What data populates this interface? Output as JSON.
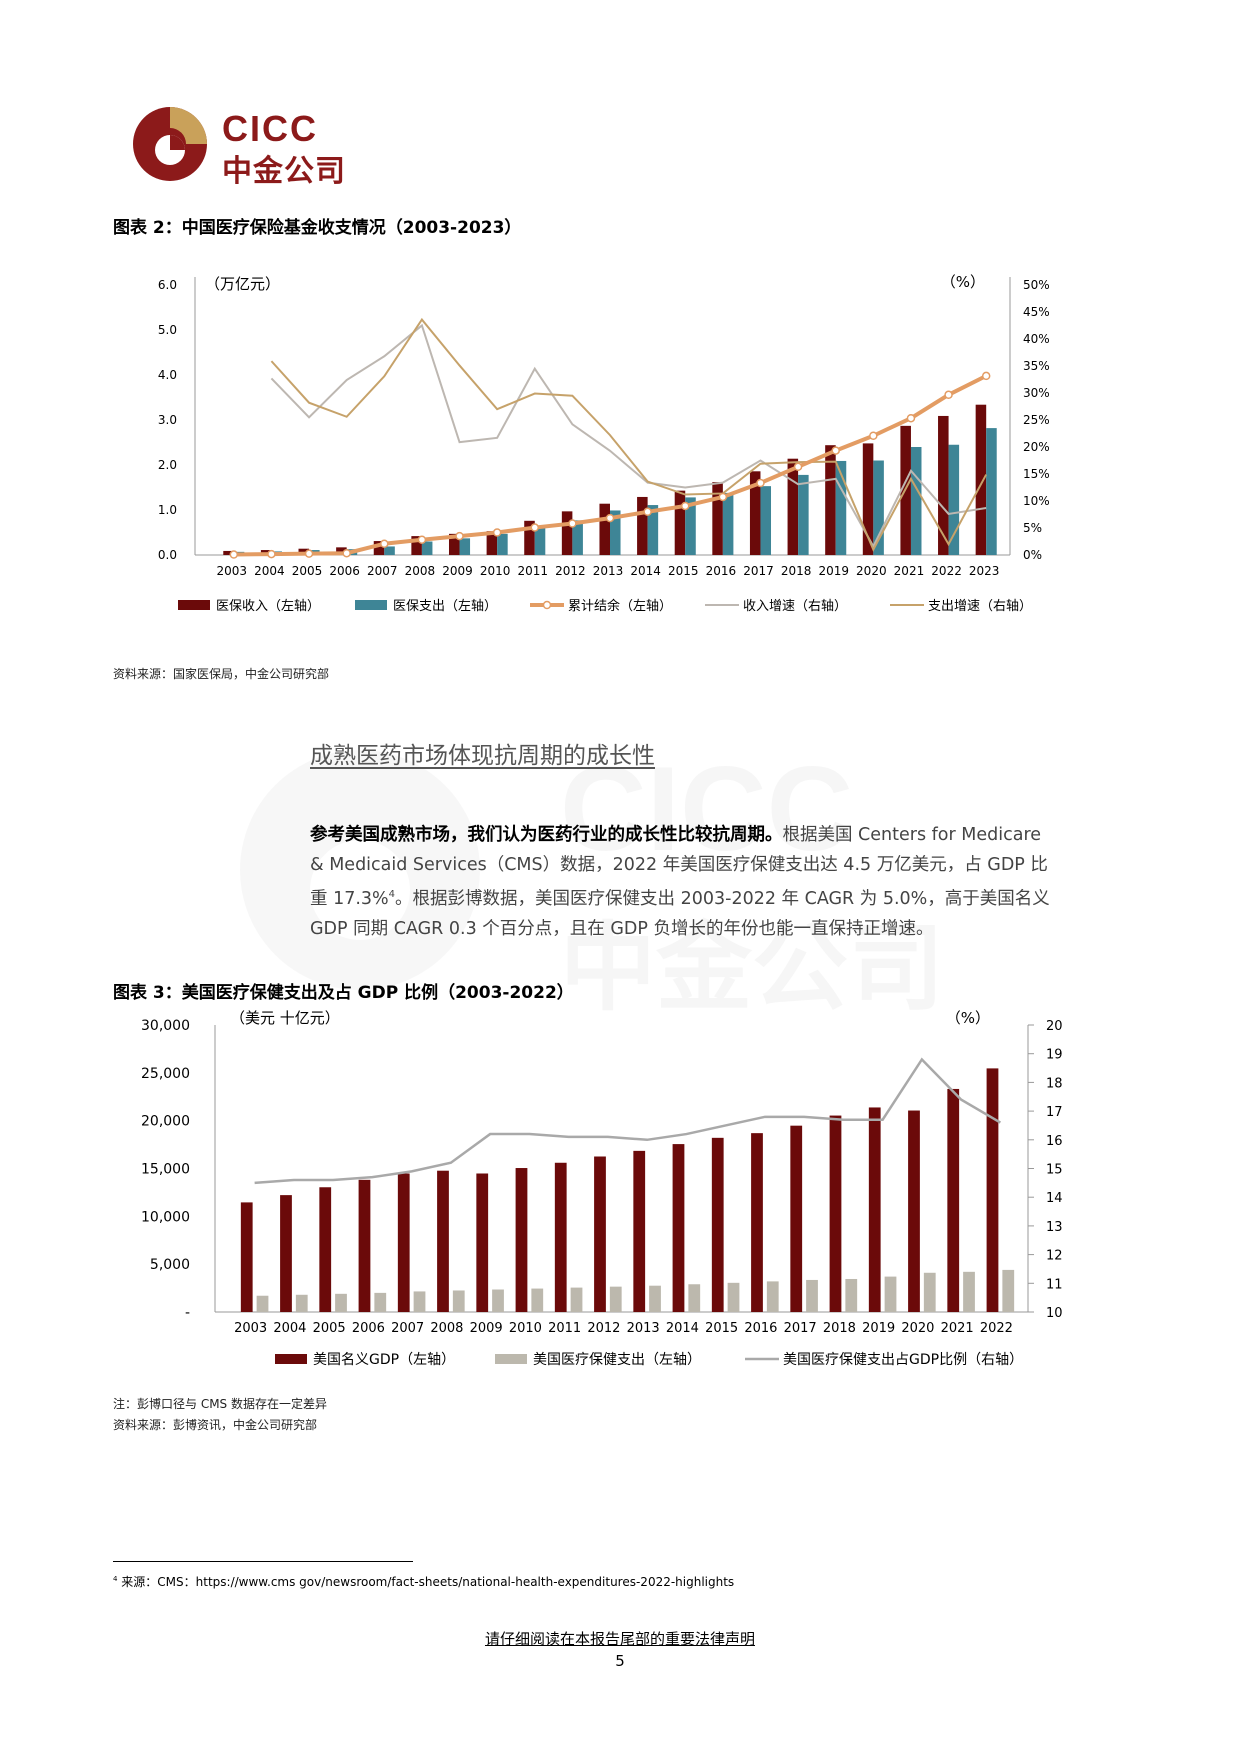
{
  "header": {
    "logo_en": "CICC",
    "logo_cn": "中金公司"
  },
  "watermark": {
    "en": "CICC",
    "cn": "中金公司"
  },
  "figure2": {
    "title": "图表 2：中国医疗保险基金收支情况（2003-2023）",
    "left_unit": "（万亿元）",
    "right_unit": "（%）",
    "source": "资料来源：国家医保局，中金公司研究部",
    "legend": [
      "医保收入（左轴）",
      "医保支出（左轴）",
      "累计结余（左轴）",
      "收入增速（右轴）",
      "支出增速（右轴）"
    ],
    "left_ticks": [
      "0.0",
      "1.0",
      "2.0",
      "3.0",
      "4.0",
      "5.0",
      "6.0"
    ],
    "right_ticks": [
      "0%",
      "5%",
      "10%",
      "15%",
      "20%",
      "25%",
      "30%",
      "35%",
      "40%",
      "45%",
      "50%"
    ],
    "colors": {
      "income": "#6b0a0a",
      "expense": "#3e8596",
      "balance": "#e39c63",
      "income_growth": "#bdb7b1",
      "expense_growth": "#c6a26a"
    }
  },
  "section": {
    "heading": "成熟医药市场体现抗周期的成长性",
    "para_bold": "参考美国成熟市场，我们认为医药行业的成长性比较抗周期。",
    "para_line1_rest": "根据美国 Centers for Medicare",
    "para_line2": "& Medicaid Services（CMS）数据，2022 年美国医疗保健支出达 4.5 万亿美元，占 GDP 比",
    "para_line3_a": "重 17.3%",
    "para_sup": "4",
    "para_line3_b": "。根据彭博数据，美国医疗保健支出 2003-2022 年 CAGR 为 5.0%，高于美国名义",
    "para_line4": "GDP 同期 CAGR 0.3 个百分点，且在 GDP 负增长的年份也能一直保持正增速。"
  },
  "figure3": {
    "title": "图表 3：美国医疗保健支出及占 GDP 比例（2003-2022）",
    "left_unit": "（美元 十亿元）",
    "right_unit": "（%）",
    "left_ticks": [
      "-",
      "5,000",
      "10,000",
      "15,000",
      "20,000",
      "25,000",
      "30,000"
    ],
    "right_ticks": [
      "10",
      "11",
      "12",
      "13",
      "14",
      "15",
      "16",
      "17",
      "18",
      "19",
      "20"
    ],
    "legend": [
      "美国名义GDP（左轴）",
      "美国医疗保健支出（左轴）",
      "美国医疗保健支出占GDP比例（右轴）"
    ],
    "note": "注：彭博口径与 CMS 数据存在一定差异",
    "source": "资料来源：彭博资讯，中金公司研究部",
    "colors": {
      "gdp": "#6b0a0a",
      "health": "#bcb8ad",
      "ratio": "#a9a9a9"
    }
  },
  "footnote": {
    "marker": "4",
    "text": "来源：CMS：https://www.cms gov/newsroom/fact-sheets/national-health-expenditures-2022-highlights"
  },
  "footer": {
    "disclaimer": "请仔细阅读在本报告尾部的重要法律声明",
    "page_number": "5"
  },
  "chart_data": [
    {
      "type": "bar",
      "title": "中国医疗保险基金收支情况（2003-2023）",
      "categories": [
        "2003",
        "2004",
        "2005",
        "2006",
        "2007",
        "2008",
        "2009",
        "2010",
        "2011",
        "2012",
        "2013",
        "2014",
        "2015",
        "2016",
        "2017",
        "2018",
        "2019",
        "2020",
        "2021",
        "2022",
        "2023"
      ],
      "ylabel": "（万亿元）",
      "y2label": "（%）",
      "ylim": [
        0,
        6
      ],
      "y2lim": [
        0,
        50
      ],
      "series": [
        {
          "name": "医保收入（左轴）",
          "axis": "left",
          "type": "bar",
          "values": [
            0.09,
            0.11,
            0.14,
            0.17,
            0.31,
            0.42,
            0.47,
            0.53,
            0.76,
            0.97,
            1.14,
            1.29,
            1.43,
            1.62,
            1.86,
            2.14,
            2.44,
            2.48,
            2.87,
            3.09,
            3.34
          ]
        },
        {
          "name": "医保支出（左轴）",
          "axis": "left",
          "type": "bar",
          "values": [
            0.07,
            0.08,
            0.11,
            0.13,
            0.19,
            0.3,
            0.37,
            0.47,
            0.6,
            0.77,
            0.99,
            1.11,
            1.28,
            1.38,
            1.53,
            1.78,
            2.09,
            2.1,
            2.4,
            2.45,
            2.82
          ]
        },
        {
          "name": "累计结余（左轴）",
          "axis": "left",
          "type": "line",
          "values": [
            0.01,
            0.02,
            0.03,
            0.04,
            0.25,
            0.34,
            0.42,
            0.5,
            0.61,
            0.7,
            0.82,
            0.96,
            1.09,
            1.29,
            1.6,
            1.96,
            2.32,
            2.65,
            3.04,
            3.56,
            3.98
          ]
        },
        {
          "name": "收入增速（右轴）",
          "axis": "right",
          "type": "line",
          "values": [
            null,
            32.7,
            25.5,
            32.4,
            36.8,
            42.5,
            20.9,
            21.7,
            34.5,
            24.2,
            19.3,
            13.4,
            12.5,
            13.4,
            17.5,
            13.1,
            14.1,
            1.6,
            15.6,
            7.6,
            8.7
          ]
        },
        {
          "name": "支出增速（右轴）",
          "axis": "right",
          "type": "line",
          "values": [
            null,
            35.9,
            28.2,
            25.6,
            33.1,
            43.6,
            35.1,
            27.0,
            29.9,
            29.5,
            22.2,
            13.6,
            11.2,
            11.4,
            16.9,
            17.2,
            17.3,
            1.0,
            14.1,
            2.0,
            14.9
          ]
        }
      ],
      "legend": "bottom"
    },
    {
      "type": "bar",
      "title": "美国医疗保健支出及占 GDP 比例（2003-2022）",
      "categories": [
        "2003",
        "2004",
        "2005",
        "2006",
        "2007",
        "2008",
        "2009",
        "2010",
        "2011",
        "2012",
        "2013",
        "2014",
        "2015",
        "2016",
        "2017",
        "2018",
        "2019",
        "2020",
        "2021",
        "2022"
      ],
      "ylabel": "（美元 十亿元）",
      "y2label": "（%）",
      "ylim": [
        0,
        30000
      ],
      "y2lim": [
        10,
        20
      ],
      "series": [
        {
          "name": "美国名义GDP（左轴）",
          "axis": "left",
          "type": "bar",
          "values": [
            11457,
            12217,
            13039,
            13815,
            14474,
            14770,
            14478,
            15049,
            15600,
            16254,
            16843,
            17551,
            18206,
            18695,
            19477,
            20533,
            21381,
            21060,
            23315,
            25464
          ]
        },
        {
          "name": "美国医疗保健支出（左轴）",
          "axis": "left",
          "type": "bar",
          "values": [
            1700,
            1800,
            1900,
            2000,
            2150,
            2250,
            2350,
            2450,
            2550,
            2650,
            2750,
            2900,
            3050,
            3200,
            3350,
            3450,
            3700,
            4100,
            4200,
            4400
          ]
        },
        {
          "name": "美国医疗保健支出占GDP比例（右轴）",
          "axis": "right",
          "type": "line",
          "values": [
            14.5,
            14.6,
            14.6,
            14.7,
            14.9,
            15.2,
            16.2,
            16.2,
            16.1,
            16.1,
            16.0,
            16.2,
            16.5,
            16.8,
            16.8,
            16.7,
            16.7,
            18.8,
            17.4,
            16.6
          ]
        }
      ],
      "legend": "bottom"
    }
  ]
}
